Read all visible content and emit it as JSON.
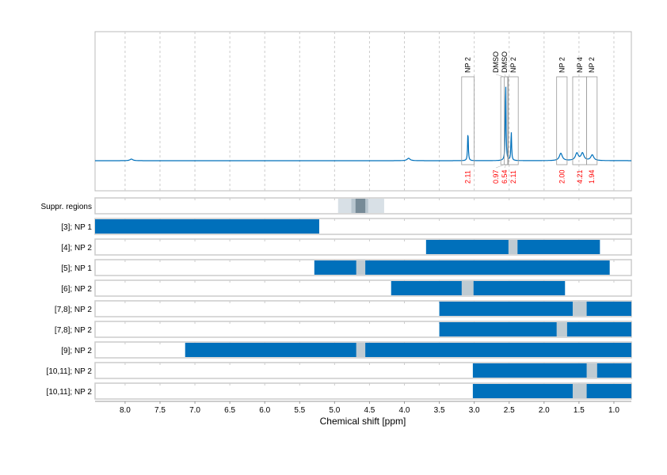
{
  "chart_data": {
    "type": "line",
    "xlabel": "Chemical shift [ppm]",
    "xlim": [
      8.43,
      0.75
    ],
    "x_reversed": true,
    "xticks": [
      "8.0",
      "7.5",
      "7.0",
      "6.5",
      "6.0",
      "5.5",
      "5.0",
      "4.5",
      "4.0",
      "3.5",
      "3.0",
      "2.5",
      "2.0",
      "1.5",
      "1.0"
    ],
    "grid": "vertical dashed",
    "colors": {
      "spectrum": "#0070bb",
      "bar": "#0070bb",
      "gap": "#bfcbd2",
      "integral": "#ff0000",
      "box": "#999999"
    },
    "spectrum_peaks": [
      {
        "ppm": 7.91,
        "intensity": 0.02
      },
      {
        "ppm": 3.94,
        "intensity": 0.03
      },
      {
        "ppm": 3.09,
        "intensity": 0.37
      },
      {
        "ppm": 2.55,
        "intensity": 1.0
      },
      {
        "ppm": 2.47,
        "intensity": 0.36
      },
      {
        "ppm": 1.76,
        "intensity": 0.09
      },
      {
        "ppm": 1.53,
        "intensity": 0.09
      },
      {
        "ppm": 1.45,
        "intensity": 0.09
      },
      {
        "ppm": 1.31,
        "intensity": 0.07
      }
    ],
    "annotations": [
      {
        "label": "NP 2",
        "from": 3.18,
        "to": 3.0,
        "integral": "2.11"
      },
      {
        "label": "DMSO",
        "from": 2.62,
        "to": 2.52,
        "integral": "0.97"
      },
      {
        "label": "DMSO",
        "from": 2.57,
        "to": 2.52,
        "integral": "6.54"
      },
      {
        "label": "NP 2",
        "from": 2.51,
        "to": 2.37,
        "integral": "2.11"
      },
      {
        "label": "NP 2",
        "from": 1.82,
        "to": 1.67,
        "integral": "2.00"
      },
      {
        "label": "NP 4",
        "from": 1.59,
        "to": 1.39,
        "integral": "4.21"
      },
      {
        "label": "NP 2",
        "from": 1.39,
        "to": 1.24,
        "integral": "1.94"
      }
    ],
    "suppressed_regions": {
      "label": "Suppr. regions",
      "bands": [
        {
          "from": 4.95,
          "to": 4.29,
          "level": 1
        },
        {
          "from": 4.76,
          "to": 4.52,
          "level": 2
        },
        {
          "from": 4.7,
          "to": 4.56,
          "level": 3
        }
      ]
    },
    "rows": [
      {
        "label": "[3]; NP 1",
        "from": 8.43,
        "to": 5.22,
        "gaps": []
      },
      {
        "label": "[4]; NP 2",
        "from": 3.69,
        "to": 1.2,
        "gaps": [
          [
            2.51,
            2.38
          ]
        ]
      },
      {
        "label": "[5]; NP 1",
        "from": 5.29,
        "to": 1.06,
        "gaps": [
          [
            4.69,
            4.56
          ]
        ]
      },
      {
        "label": "[6]; NP 2",
        "from": 4.19,
        "to": 1.7,
        "gaps": [
          [
            3.18,
            3.01
          ]
        ]
      },
      {
        "label": "[7,8]; NP 2",
        "from": 3.5,
        "to": 0.75,
        "gaps": [
          [
            1.59,
            1.39
          ]
        ]
      },
      {
        "label": "[7,8]; NP 2",
        "from": 3.5,
        "to": 0.75,
        "gaps": [
          [
            1.82,
            1.67
          ]
        ]
      },
      {
        "label": "[9]; NP 2",
        "from": 7.14,
        "to": 0.75,
        "gaps": [
          [
            4.69,
            4.56
          ]
        ]
      },
      {
        "label": "[10,11]; NP 2",
        "from": 3.02,
        "to": 0.75,
        "gaps": [
          [
            1.39,
            1.24
          ]
        ]
      },
      {
        "label": "[10,11]; NP 2",
        "from": 3.02,
        "to": 0.75,
        "gaps": [
          [
            1.59,
            1.39
          ]
        ]
      }
    ]
  }
}
